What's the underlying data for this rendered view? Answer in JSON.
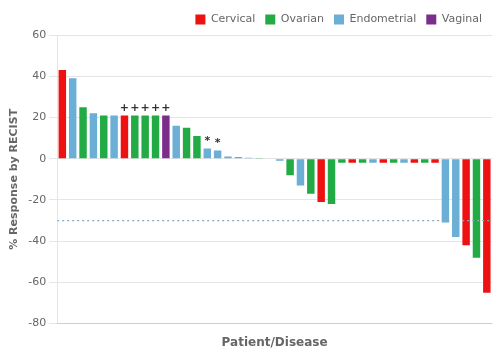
{
  "chart_data": {
    "type": "bar",
    "categories": [
      null,
      null,
      null,
      null,
      null,
      null,
      null,
      null,
      null,
      null,
      null,
      null,
      null,
      null,
      null,
      null,
      null,
      null,
      null,
      null,
      null,
      null,
      null,
      null,
      null,
      null,
      null,
      null,
      null,
      null,
      null,
      null,
      null,
      null,
      null,
      null,
      null,
      null,
      null,
      null,
      null,
      null
    ],
    "series": [
      {
        "name": "Cervical",
        "color": "#EE1111",
        "values": [
          43,
          null,
          null,
          null,
          null,
          null,
          21,
          null,
          null,
          null,
          null,
          null,
          null,
          null,
          null,
          null,
          null,
          null,
          null,
          null,
          null,
          null,
          null,
          null,
          null,
          -21,
          null,
          null,
          -2,
          null,
          null,
          -2,
          null,
          null,
          -2,
          null,
          -2,
          null,
          null,
          -42,
          null,
          -65
        ]
      },
      {
        "name": "Ovarian",
        "color": "#22AA44",
        "values": [
          null,
          null,
          25,
          null,
          21,
          null,
          null,
          21,
          21,
          21,
          null,
          null,
          15,
          11,
          null,
          null,
          null,
          null,
          null,
          0.3,
          0.2,
          null,
          -8,
          null,
          -17,
          null,
          -22,
          -2,
          null,
          -2,
          null,
          null,
          -2,
          null,
          null,
          -2,
          null,
          null,
          null,
          null,
          -48,
          null
        ]
      },
      {
        "name": "Endometrial",
        "color": "#6BAED6",
        "values": [
          null,
          39,
          null,
          22,
          null,
          21,
          null,
          null,
          null,
          null,
          null,
          16,
          null,
          null,
          5,
          4,
          1,
          0.8,
          0.5,
          null,
          null,
          -1,
          null,
          -13,
          null,
          null,
          null,
          null,
          null,
          null,
          -2,
          null,
          null,
          -2,
          null,
          null,
          null,
          -31,
          -38,
          null,
          null,
          null
        ]
      },
      {
        "name": "Vaginal",
        "color": "#7B2D8B",
        "values": [
          null,
          null,
          null,
          null,
          null,
          null,
          null,
          null,
          null,
          null,
          21,
          null,
          null,
          null,
          null,
          null,
          null,
          null,
          null,
          null,
          null,
          null,
          null,
          null,
          null,
          null,
          null,
          null,
          null,
          null,
          null,
          null,
          null,
          null,
          null,
          null,
          null,
          null,
          null,
          null,
          null,
          null
        ]
      }
    ],
    "annotations": [
      null,
      null,
      null,
      null,
      null,
      null,
      "+",
      "+",
      "+",
      "+",
      "+",
      null,
      null,
      null,
      "*",
      "*",
      null,
      null,
      null,
      null,
      null,
      null,
      null,
      null,
      null,
      null,
      null,
      null,
      null,
      null,
      null,
      null,
      null,
      null,
      null,
      null,
      null,
      null,
      null,
      null,
      null,
      null
    ],
    "reference_lines": [
      {
        "value": -30,
        "color": "#88AABB",
        "line_style": "dotted"
      }
    ],
    "xlabel": "Patient/Disease",
    "ylabel": "% Response by RECIST",
    "ylim": [
      -80,
      60
    ],
    "yticks": [
      -80,
      -60,
      -40,
      -20,
      0,
      20,
      40,
      60
    ],
    "grid": true,
    "legend": "upper right",
    "tick_labels": "y"
  }
}
